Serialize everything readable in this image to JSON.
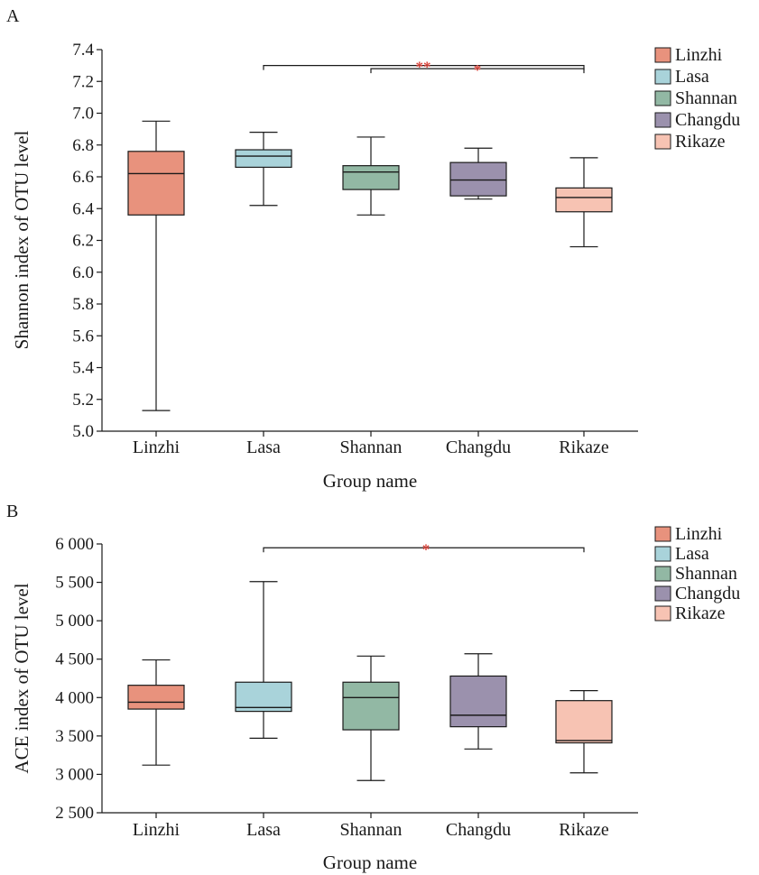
{
  "chart_data": [
    {
      "type": "box",
      "panel_label": "A",
      "xlabel": "Group name",
      "ylabel": "Shannon index of OTU level",
      "ylim": [
        5.0,
        7.4
      ],
      "yticks": [
        "5.0",
        "5.2",
        "5.4",
        "5.6",
        "5.8",
        "6.0",
        "6.2",
        "6.4",
        "6.6",
        "6.8",
        "7.0",
        "7.2",
        "7.4"
      ],
      "categories": [
        "Linzhi",
        "Lasa",
        "Shannan",
        "Changdu",
        "Rikaze"
      ],
      "colors": [
        "#e8927d",
        "#a9d3da",
        "#92b8a4",
        "#9b91ad",
        "#f7c3b3"
      ],
      "boxes": [
        {
          "name": "Linzhi",
          "min": 5.13,
          "q1": 6.36,
          "median": 6.62,
          "q3": 6.76,
          "max": 6.95
        },
        {
          "name": "Lasa",
          "min": 6.42,
          "q1": 6.66,
          "median": 6.73,
          "q3": 6.77,
          "max": 6.88
        },
        {
          "name": "Shannan",
          "min": 6.36,
          "q1": 6.52,
          "median": 6.63,
          "q3": 6.67,
          "max": 6.85
        },
        {
          "name": "Changdu",
          "min": 6.46,
          "q1": 6.48,
          "median": 6.58,
          "q3": 6.69,
          "max": 6.78
        },
        {
          "name": "Rikaze",
          "min": 6.16,
          "q1": 6.38,
          "median": 6.47,
          "q3": 6.53,
          "max": 6.72
        }
      ],
      "legend": [
        "Linzhi",
        "Lasa",
        "Shannan",
        "Changdu",
        "Rikaze"
      ],
      "legend_position": "right",
      "significance": [
        {
          "from": "Lasa",
          "to": "Rikaze",
          "y": 7.3,
          "label": "**"
        },
        {
          "from": "Shannan",
          "to": "Rikaze",
          "y": 7.28,
          "label": "*"
        }
      ]
    },
    {
      "type": "box",
      "panel_label": "B",
      "xlabel": "Group name",
      "ylabel": "ACE index of OTU level",
      "ylim": [
        2500,
        6000
      ],
      "yticks": [
        "2 500",
        "3 000",
        "3 500",
        "4 000",
        "4 500",
        "5 000",
        "5 500",
        "6 000"
      ],
      "categories": [
        "Linzhi",
        "Lasa",
        "Shannan",
        "Changdu",
        "Rikaze"
      ],
      "colors": [
        "#e8927d",
        "#a9d3da",
        "#92b8a4",
        "#9b91ad",
        "#f7c3b3"
      ],
      "boxes": [
        {
          "name": "Linzhi",
          "min": 3120,
          "q1": 3850,
          "median": 3940,
          "q3": 4160,
          "max": 4490
        },
        {
          "name": "Lasa",
          "min": 3470,
          "q1": 3820,
          "median": 3870,
          "q3": 4200,
          "max": 5510
        },
        {
          "name": "Shannan",
          "min": 2920,
          "q1": 3580,
          "median": 4000,
          "q3": 4200,
          "max": 4540
        },
        {
          "name": "Changdu",
          "min": 3330,
          "q1": 3620,
          "median": 3770,
          "q3": 4280,
          "max": 4570
        },
        {
          "name": "Rikaze",
          "min": 3020,
          "q1": 3410,
          "median": 3440,
          "q3": 3960,
          "max": 4090
        }
      ],
      "legend": [
        "Linzhi",
        "Lasa",
        "Shannan",
        "Changdu",
        "Rikaze"
      ],
      "legend_position": "right",
      "significance": [
        {
          "from": "Lasa",
          "to": "Rikaze",
          "y": 5950,
          "label": "*"
        }
      ]
    }
  ]
}
